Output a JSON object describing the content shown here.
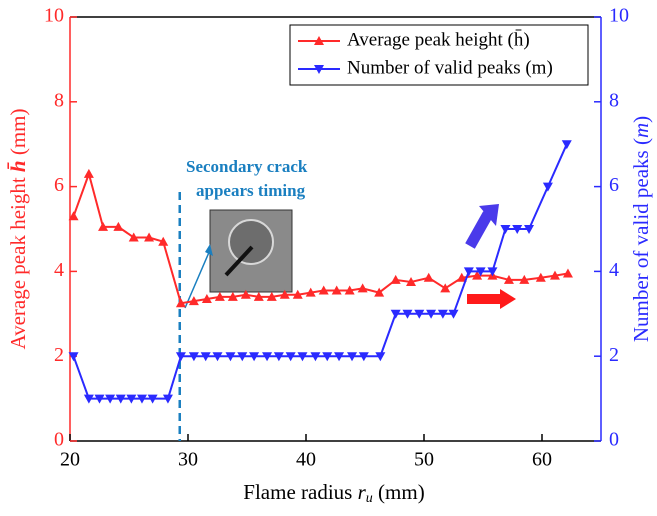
{
  "chart_data": {
    "type": "line",
    "xlabel": {
      "text": "Flame radius ",
      "var": "r",
      "sub": "u",
      "unit": " (mm)"
    },
    "ylabel": {
      "text": "Average peak height ",
      "var": "h̄",
      "unit": "  (mm)"
    },
    "y2label": {
      "text": "Number of valid peaks (",
      "var": "m",
      "unit": ")"
    },
    "annotation": [
      "Secondary crack",
      "appears timing"
    ],
    "annotation_x": 29.3,
    "xlim": [
      20,
      65
    ],
    "xticks": [
      20,
      30,
      40,
      50,
      60
    ],
    "ylim": [
      0,
      10
    ],
    "yticks": [
      0,
      2,
      4,
      6,
      8,
      10
    ],
    "y2lim": [
      0,
      10
    ],
    "y2ticks": [
      0,
      2,
      4,
      6,
      8,
      10
    ],
    "legend": "upper right",
    "series": [
      {
        "name": "Average peak height  (h̄)",
        "color": "#ff2a2a",
        "marker": "triangle-up",
        "x": [
          20.3,
          21.6,
          22.8,
          24.1,
          25.4,
          26.7,
          27.9,
          29.4,
          30.5,
          31.6,
          32.7,
          33.8,
          34.9,
          36.0,
          37.1,
          38.2,
          39.3,
          40.4,
          41.5,
          42.6,
          43.7,
          44.8,
          46.2,
          47.6,
          48.9,
          50.4,
          51.8,
          53.2,
          54.5,
          55.8,
          57.2,
          58.5,
          59.9,
          61.1,
          62.2
        ],
        "values": [
          5.3,
          6.3,
          5.05,
          5.05,
          4.8,
          4.8,
          4.7,
          3.25,
          3.3,
          3.35,
          3.4,
          3.4,
          3.45,
          3.4,
          3.4,
          3.45,
          3.45,
          3.5,
          3.55,
          3.55,
          3.55,
          3.6,
          3.5,
          3.8,
          3.75,
          3.85,
          3.6,
          3.85,
          3.9,
          3.9,
          3.8,
          3.8,
          3.85,
          3.9,
          3.95
        ]
      },
      {
        "name": "Number of valid peaks (m)",
        "color": "#2a2aff",
        "marker": "triangle-down",
        "axis": "y2",
        "x": [
          20.3,
          21.6,
          22.5,
          23.4,
          24.3,
          25.2,
          26.1,
          27.0,
          28.3,
          29.4,
          30.5,
          31.5,
          32.5,
          33.6,
          34.6,
          35.6,
          36.7,
          37.7,
          38.7,
          39.7,
          40.8,
          41.8,
          42.8,
          43.9,
          44.9,
          46.3,
          47.6,
          48.6,
          49.6,
          50.6,
          51.6,
          52.5,
          53.8,
          54.8,
          55.8,
          56.9,
          57.9,
          58.9,
          60.5,
          62.1
        ],
        "values": [
          2,
          1,
          1,
          1,
          1,
          1,
          1,
          1,
          1,
          2,
          2,
          2,
          2,
          2,
          2,
          2,
          2,
          2,
          2,
          2,
          2,
          2,
          2,
          2,
          2,
          2,
          3,
          3,
          3,
          3,
          3,
          3,
          4,
          4,
          4,
          5,
          5,
          5,
          6,
          7
        ]
      }
    ]
  }
}
